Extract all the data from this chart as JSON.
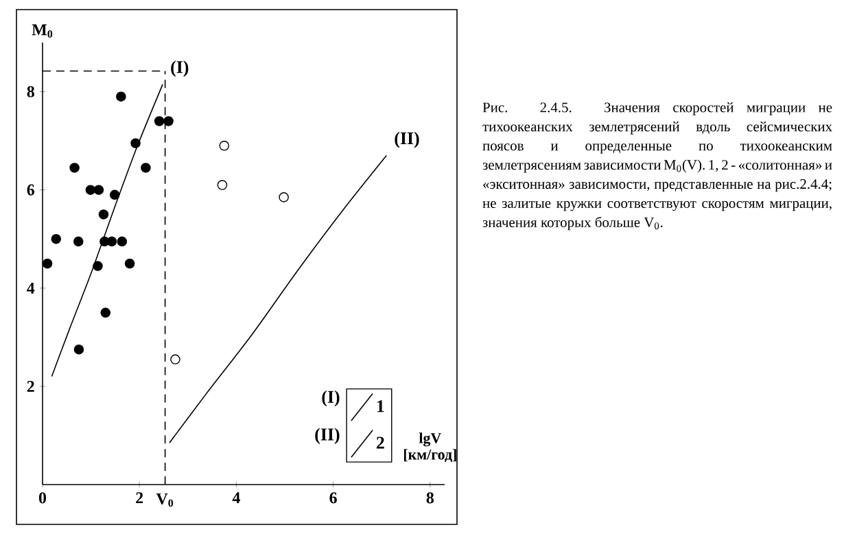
{
  "chart_data": {
    "type": "scatter",
    "xlabel": "lgV [км/год]",
    "ylabel": "M$_{0}$",
    "xlim": [
      0,
      8.3
    ],
    "ylim": [
      0,
      9
    ],
    "xticks": [
      0,
      2,
      4,
      6,
      8
    ],
    "yticks": [
      2,
      4,
      6,
      8
    ],
    "legend": "bottom right",
    "series": [
      {
        "marker": "circle",
        "color": "#000000",
        "x": [
          0.1,
          0.28,
          0.66,
          0.74,
          0.75,
          0.99,
          1.16,
          1.14,
          1.26,
          1.3,
          1.28,
          1.43,
          1.49,
          1.64,
          1.62,
          1.8,
          1.92,
          2.13,
          2.41,
          2.6
        ],
        "values": [
          4.5,
          5.0,
          6.45,
          4.95,
          2.75,
          6.0,
          6.0,
          4.45,
          5.5,
          3.5,
          4.95,
          4.95,
          5.9,
          4.95,
          7.9,
          4.5,
          6.95,
          6.45,
          7.4,
          7.4
        ]
      },
      {
        "marker": "circle",
        "color": "#ffffff",
        "x": [
          3.75,
          3.71,
          4.98,
          2.74
        ],
        "values": [
          6.9,
          6.1,
          5.85,
          2.55
        ]
      },
      {
        "type": "line",
        "marker": "none",
        "name": "1",
        "color": "#000000",
        "x": [
          0.19,
          0.55,
          1.02,
          1.49,
          1.96,
          2.48
        ],
        "values": [
          2.2,
          3.15,
          4.35,
          5.65,
          6.9,
          8.15
        ]
      },
      {
        "type": "line",
        "marker": "none",
        "name": "2",
        "color": "#000000",
        "x": [
          2.62,
          3.38,
          4.32,
          5.26,
          6.21,
          7.1
        ],
        "values": [
          0.85,
          1.85,
          3.05,
          4.35,
          5.6,
          6.7
        ]
      }
    ],
    "ref_lines": [
      {
        "axis": "x",
        "value": 2.53,
        "label": "V$_{0}$",
        "line_style": "dashed"
      },
      {
        "axis": "y",
        "value": 8.42,
        "label": null,
        "line_style": "dashed"
      }
    ],
    "annotations": [
      "(I)",
      "(II)",
      "(I)",
      "(II)",
      "Рис. 2.4.5. Значения скоростей миграции не тихоокеанских землетрясений вдоль сейсмических поясов и определенные по тихоокеанским землетрясениям зависимости M$_{0}$(V). 1, 2 - «солитонная» и «экситонная» зависимости, представленные на рис.2.4.4; не залитые кружки соответствуют скоростям миграции, значения которых больше V$_{0}$."
    ]
  }
}
